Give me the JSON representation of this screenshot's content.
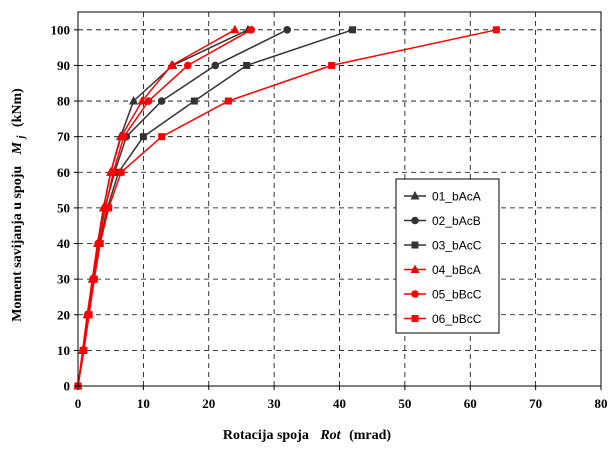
{
  "chart_data": {
    "type": "line",
    "xlabel": {
      "main": "Rotacija spoja",
      "italic": "Rot",
      "unit": "(mrad)"
    },
    "ylabel": {
      "main": "Moment savijanja u spoju",
      "italic": "M",
      "subscript": "j",
      "unit": "(kNm)"
    },
    "xlim": [
      0,
      80
    ],
    "ylim": [
      0,
      105
    ],
    "x_ticks": [
      "0",
      "10",
      "20",
      "30",
      "40",
      "50",
      "60",
      "70",
      "80"
    ],
    "y_ticks": [
      "0",
      "10",
      "20",
      "30",
      "40",
      "50",
      "60",
      "70",
      "80",
      "90",
      "100"
    ],
    "grid": "dashed",
    "legend_position": "right-center",
    "series": [
      {
        "name": "01_bAcA",
        "color": "#333333",
        "marker": "triangle",
        "points": [
          [
            0,
            0
          ],
          [
            0.8,
            10
          ],
          [
            1.5,
            20
          ],
          [
            2.2,
            30
          ],
          [
            3.0,
            40
          ],
          [
            3.9,
            50
          ],
          [
            5.0,
            60
          ],
          [
            6.5,
            70
          ],
          [
            8.5,
            80
          ],
          [
            14.5,
            90
          ],
          [
            26.0,
            100
          ]
        ]
      },
      {
        "name": "02_bAcB",
        "color": "#333333",
        "marker": "circle",
        "points": [
          [
            0,
            0
          ],
          [
            0.8,
            10
          ],
          [
            1.5,
            20
          ],
          [
            2.3,
            30
          ],
          [
            3.1,
            40
          ],
          [
            4.1,
            50
          ],
          [
            5.6,
            60
          ],
          [
            7.4,
            70
          ],
          [
            12.8,
            80
          ],
          [
            21.0,
            90
          ],
          [
            32.0,
            100
          ]
        ]
      },
      {
        "name": "03_bAcC",
        "color": "#333333",
        "marker": "square",
        "points": [
          [
            0,
            0
          ],
          [
            0.8,
            10
          ],
          [
            1.6,
            20
          ],
          [
            2.4,
            30
          ],
          [
            3.3,
            40
          ],
          [
            4.5,
            50
          ],
          [
            6.2,
            60
          ],
          [
            10.0,
            70
          ],
          [
            17.8,
            80
          ],
          [
            25.8,
            90
          ],
          [
            42.0,
            100
          ]
        ]
      },
      {
        "name": "04_bBcA",
        "color": "#ff0000",
        "marker": "triangle",
        "points": [
          [
            0,
            0
          ],
          [
            0.7,
            10
          ],
          [
            1.4,
            20
          ],
          [
            2.2,
            30
          ],
          [
            3.0,
            40
          ],
          [
            3.9,
            50
          ],
          [
            5.0,
            60
          ],
          [
            6.6,
            70
          ],
          [
            9.8,
            80
          ],
          [
            14.3,
            90
          ],
          [
            24.0,
            100
          ]
        ]
      },
      {
        "name": "05_bBcC",
        "color": "#ff0000",
        "marker": "circle",
        "points": [
          [
            0,
            0
          ],
          [
            0.8,
            10
          ],
          [
            1.5,
            20
          ],
          [
            2.3,
            30
          ],
          [
            3.1,
            40
          ],
          [
            4.2,
            50
          ],
          [
            5.4,
            60
          ],
          [
            7.0,
            70
          ],
          [
            10.8,
            80
          ],
          [
            16.8,
            90
          ],
          [
            26.5,
            100
          ]
        ]
      },
      {
        "name": "06_bBcC",
        "color": "#ff0000",
        "marker": "square",
        "points": [
          [
            0,
            0
          ],
          [
            0.9,
            10
          ],
          [
            1.7,
            20
          ],
          [
            2.5,
            30
          ],
          [
            3.4,
            40
          ],
          [
            4.7,
            50
          ],
          [
            6.6,
            60
          ],
          [
            12.8,
            70
          ],
          [
            23.0,
            80
          ],
          [
            38.8,
            90
          ],
          [
            64.0,
            100
          ]
        ]
      }
    ]
  }
}
